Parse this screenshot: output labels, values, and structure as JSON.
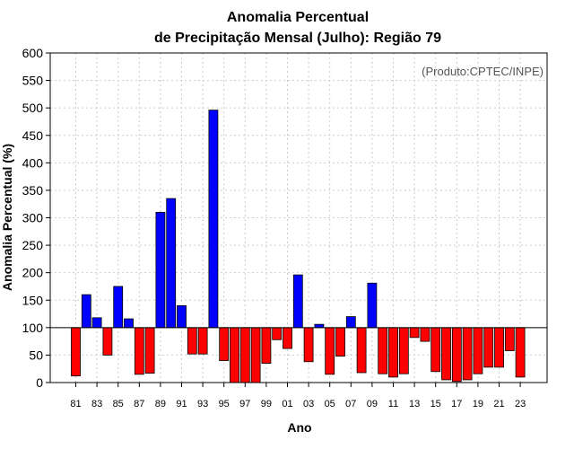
{
  "chart_data": {
    "type": "bar",
    "title_line1": "Anomalia Percentual",
    "title_line2": "de Precipitação Mensal (Julho): Região 79",
    "xlabel": "Ano",
    "ylabel": "Anomalia Percentual (%)",
    "credit": "(Produto:CPTEC/INPE)",
    "ylim": [
      0,
      600
    ],
    "yticks": [
      0,
      50,
      100,
      150,
      200,
      250,
      300,
      350,
      400,
      450,
      500,
      550,
      600
    ],
    "baseline": 100,
    "grid": true,
    "colors": {
      "above": "#0000ff",
      "below": "#ff0000",
      "outline": "#000000",
      "grid": "#cccccc"
    },
    "categories": [
      "81",
      "82",
      "83",
      "84",
      "85",
      "86",
      "87",
      "88",
      "89",
      "90",
      "91",
      "92",
      "93",
      "94",
      "95",
      "96",
      "97",
      "98",
      "99",
      "00",
      "01",
      "02",
      "03",
      "04",
      "05",
      "06",
      "07",
      "08",
      "09",
      "10",
      "11",
      "12",
      "13",
      "14",
      "15",
      "16",
      "17",
      "18",
      "19",
      "20",
      "21",
      "22",
      "23"
    ],
    "xtick_labels": [
      "81",
      "83",
      "85",
      "87",
      "89",
      "91",
      "93",
      "95",
      "97",
      "99",
      "01",
      "03",
      "05",
      "07",
      "09",
      "11",
      "13",
      "15",
      "17",
      "19",
      "21",
      "23"
    ],
    "values": [
      12,
      160,
      118,
      50,
      175,
      116,
      15,
      17,
      310,
      335,
      140,
      52,
      52,
      496,
      40,
      0,
      0,
      0,
      35,
      78,
      62,
      196,
      38,
      106,
      15,
      48,
      120,
      18,
      181,
      16,
      10,
      16,
      82,
      75,
      20,
      5,
      2,
      5,
      16,
      28,
      28,
      58,
      10
    ]
  }
}
